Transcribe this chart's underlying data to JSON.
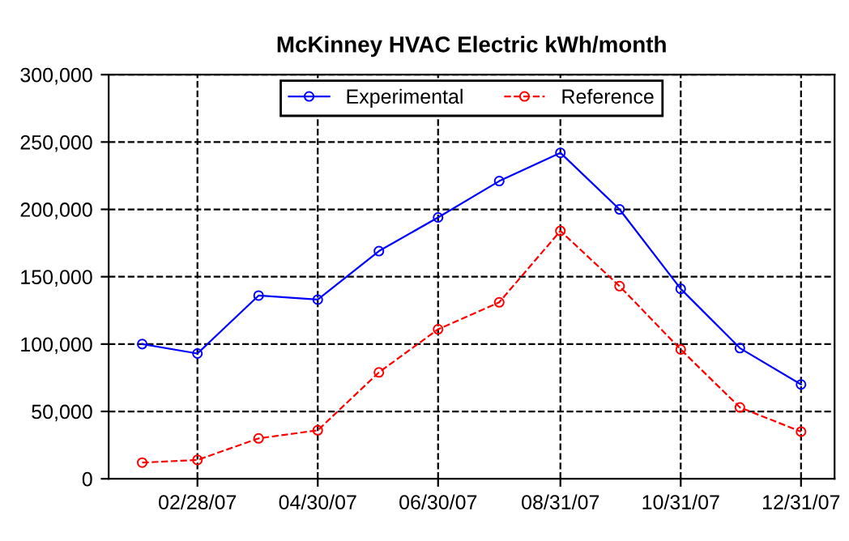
{
  "chart_data": {
    "type": "line",
    "title": "McKinney HVAC Electric kWh/month",
    "x": [
      "2007-01-31",
      "2007-02-28",
      "2007-03-31",
      "2007-04-30",
      "2007-05-31",
      "2007-06-30",
      "2007-07-31",
      "2007-08-31",
      "2007-09-30",
      "2007-10-31",
      "2007-11-30",
      "2007-12-31"
    ],
    "series": [
      {
        "name": "Experimental",
        "color": "#0000ff",
        "line_style": "solid",
        "values": [
          100000,
          93000,
          136000,
          133000,
          169000,
          194000,
          221000,
          242000,
          200000,
          141000,
          97000,
          70000
        ]
      },
      {
        "name": "Reference",
        "color": "#ff0000",
        "line_style": "dashed",
        "values": [
          12000,
          14000,
          30000,
          36000,
          79000,
          111000,
          131000,
          184000,
          143000,
          96000,
          53000,
          35000
        ]
      }
    ],
    "xlim": [
      "2007-01-14",
      "2008-01-17"
    ],
    "xticks": [
      {
        "value": "2007-02-28",
        "label": "02/28/07"
      },
      {
        "value": "2007-04-30",
        "label": "04/30/07"
      },
      {
        "value": "2007-06-30",
        "label": "06/30/07"
      },
      {
        "value": "2007-08-31",
        "label": "08/31/07"
      },
      {
        "value": "2007-10-31",
        "label": "10/31/07"
      },
      {
        "value": "2007-12-31",
        "label": "12/31/07"
      }
    ],
    "ylim": [
      0,
      300000
    ],
    "yticks": [
      0,
      {
        "value": 50000,
        "label": "50,000"
      },
      {
        "value": 100000,
        "label": "100,000"
      },
      {
        "value": 150000,
        "label": "150,000"
      },
      {
        "value": 200000,
        "label": "200,000"
      },
      {
        "value": 250000,
        "label": "250,000"
      },
      {
        "value": 300000,
        "label": "300,000"
      }
    ],
    "grid": true,
    "legend": "top",
    "marker": "circle"
  }
}
